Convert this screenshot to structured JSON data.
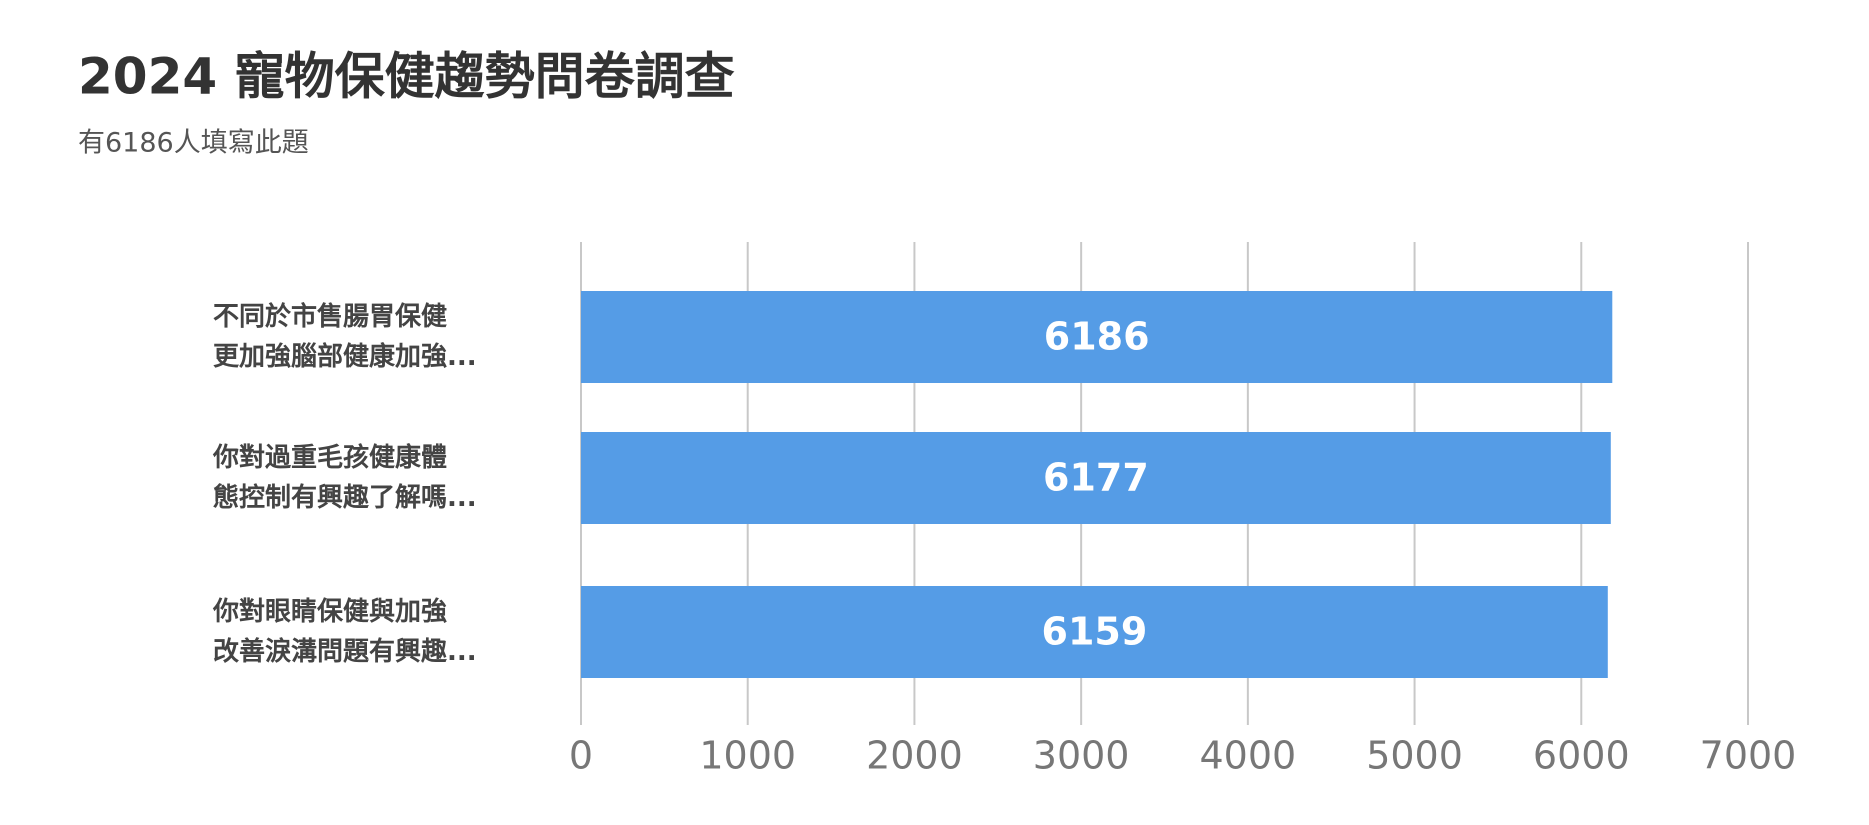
{
  "chart_data": {
    "type": "barh",
    "title": "2024 寵物保健趨勢問卷調查",
    "subtitle": "有6186人填寫此題",
    "categories": [
      "不同於市售腸胃保健\n更加強腦部健康加強...",
      "你對過重毛孩健康體\n態控制有興趣了解嗎...",
      "你對眼睛保健與加強\n改善淚溝問題有興趣..."
    ],
    "values": [
      6186,
      6177,
      6159
    ],
    "color": "#559ce6",
    "xlim": [
      0,
      7000
    ],
    "xticks": [
      0,
      1000,
      2000,
      3000,
      4000,
      5000,
      6000,
      7000
    ],
    "grid": true
  }
}
